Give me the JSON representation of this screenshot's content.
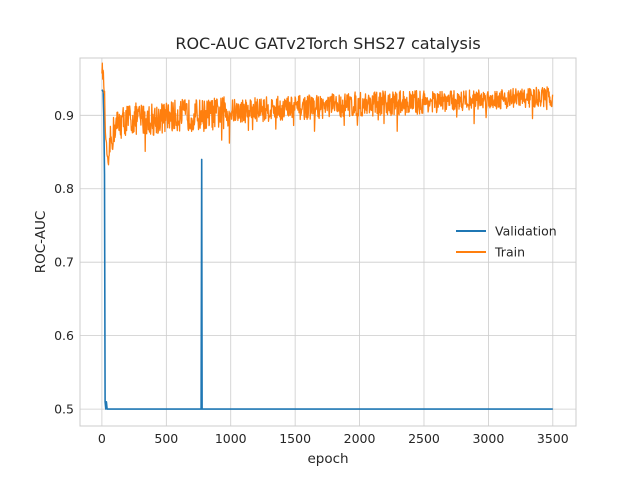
{
  "chart_data": {
    "type": "line",
    "title": "ROC-AUC GATv2Torch SHS27 catalysis",
    "xlabel": "epoch",
    "ylabel": "ROC-AUC",
    "xlim": [
      -170,
      3680
    ],
    "ylim": [
      0.477,
      0.978
    ],
    "xticks": [
      0,
      500,
      1000,
      1500,
      2000,
      2500,
      3000,
      3500
    ],
    "yticks": [
      0.5,
      0.6,
      0.7,
      0.8,
      0.9
    ],
    "ytick_labels": [
      "0.5",
      "0.6",
      "0.7",
      "0.8",
      "0.9"
    ],
    "grid": true,
    "legend": {
      "placement": "center-right"
    },
    "series": [
      {
        "name": "Validation",
        "color": "#1f77b4",
        "x": [
          0,
          10,
          15,
          20,
          25,
          30,
          35,
          40,
          770,
          775,
          778,
          782,
          3500
        ],
        "y": [
          0.935,
          0.932,
          0.9,
          0.82,
          0.51,
          0.5,
          0.51,
          0.5,
          0.5,
          0.84,
          0.5,
          0.5,
          0.5
        ]
      },
      {
        "name": "Train",
        "color": "#ff7f0e",
        "x": [
          0,
          10,
          20,
          30,
          40,
          50,
          60,
          80,
          100,
          150,
          200,
          300,
          400,
          500,
          600,
          800,
          1000,
          1200,
          1500,
          2000,
          2500,
          3000,
          3500
        ],
        "y": [
          0.965,
          0.955,
          0.93,
          0.86,
          0.85,
          0.82,
          0.86,
          0.87,
          0.885,
          0.89,
          0.895,
          0.895,
          0.895,
          0.897,
          0.9,
          0.9,
          0.905,
          0.908,
          0.91,
          0.915,
          0.918,
          0.922,
          0.925
        ]
      }
    ]
  }
}
